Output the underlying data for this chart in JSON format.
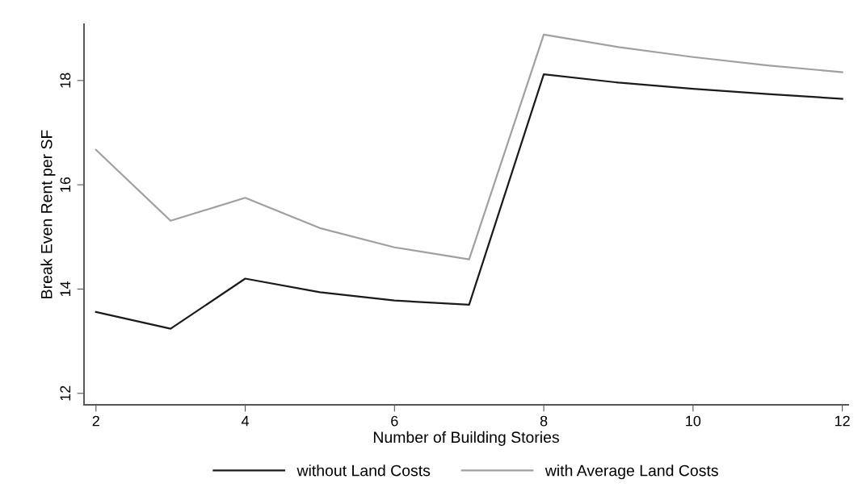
{
  "chart_data": {
    "type": "line",
    "xlabel": "Number of Building Stories",
    "ylabel": "Break Even Rent per SF",
    "x": [
      2,
      3,
      4,
      5,
      6,
      7,
      8,
      9,
      10,
      11,
      12
    ],
    "series": [
      {
        "name": "without Land Costs",
        "color": "#1a1a1a",
        "values": [
          13.56,
          13.24,
          14.2,
          13.94,
          13.78,
          13.7,
          18.12,
          17.96,
          17.84,
          17.74,
          17.65
        ]
      },
      {
        "name": "with Average Land Costs",
        "color": "#a0a0a0",
        "values": [
          16.67,
          15.31,
          15.75,
          15.17,
          14.8,
          14.57,
          18.88,
          18.64,
          18.45,
          18.29,
          18.16
        ]
      }
    ],
    "xlim": [
      1.84,
      12.08
    ],
    "ylim": [
      11.78,
      19.08
    ],
    "xticks": [
      2,
      4,
      6,
      8,
      10,
      12
    ],
    "yticks": [
      12,
      14,
      16,
      18
    ],
    "grid": false,
    "legend": "bottom",
    "marker": "none",
    "line_style": "solid"
  }
}
